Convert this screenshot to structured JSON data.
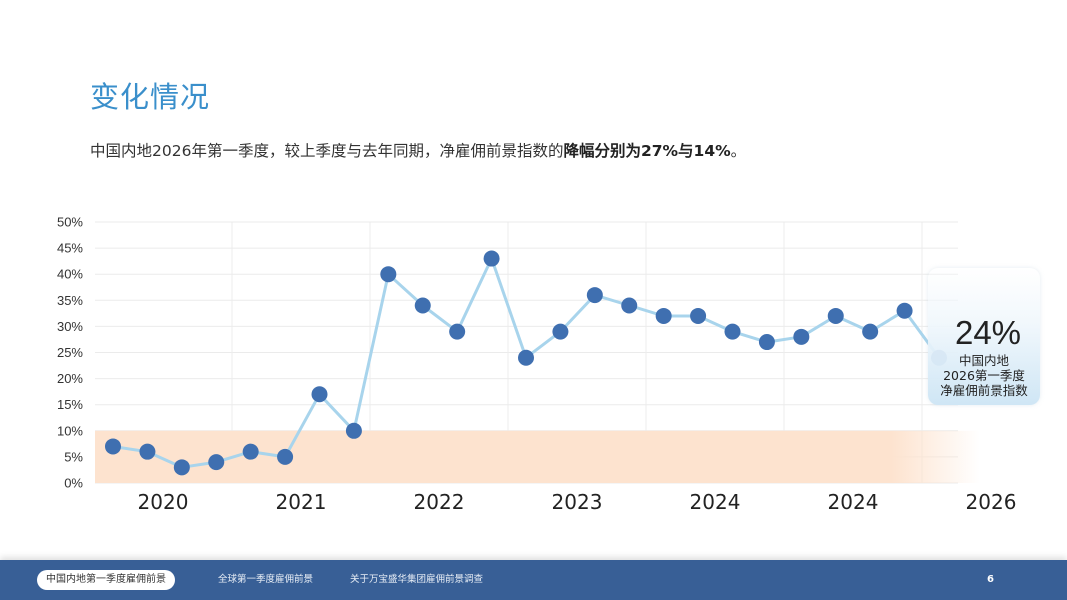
{
  "header": {
    "title": "变化情况",
    "subtitle_normal": "中国内地2026年第一季度，较上季度与去年同期，净雇佣前景指数的",
    "subtitle_bold": "降幅分别为27%与14%",
    "subtitle_end": "。"
  },
  "callout": {
    "value": "24%",
    "line1": "中国内地",
    "line2": "2026第一季度",
    "line3": "净雇佣前景指数",
    "bg_color": "#d6ebf7"
  },
  "footer": {
    "tabs": [
      {
        "label": "中国内地第一季度雇佣前景",
        "active": true
      },
      {
        "label": "全球第一季度雇佣前景",
        "active": false
      },
      {
        "label": "关于万宝盛华集团雇佣前景调查",
        "active": false
      }
    ],
    "page_number": "6",
    "bg_color": "#385f96"
  },
  "chart_data": {
    "type": "line",
    "title": "",
    "xlabel": "",
    "ylabel": "",
    "ylim": [
      0,
      50
    ],
    "y_ticks": [
      "0%",
      "5%",
      "10%",
      "15%",
      "20%",
      "25%",
      "30%",
      "35%",
      "40%",
      "45%",
      "50%"
    ],
    "x_tick_labels": [
      "2020",
      "2021",
      "2022",
      "2023",
      "2024",
      "2024",
      "2026"
    ],
    "grid": true,
    "highlight_band": {
      "from": 0,
      "to": 10,
      "color": "#fde3cf"
    },
    "line_color": "#a8d4ec",
    "marker_color": "#3f6fb0",
    "series": [
      {
        "name": "净雇佣前景指数",
        "values": [
          7,
          6,
          3,
          4,
          6,
          5,
          17,
          10,
          40,
          34,
          29,
          43,
          24,
          29,
          36,
          34,
          32,
          32,
          29,
          27,
          28,
          32,
          29,
          33,
          24
        ]
      }
    ],
    "annotation": "24% 中国内地 2026第一季度 净雇佣前景指数"
  }
}
